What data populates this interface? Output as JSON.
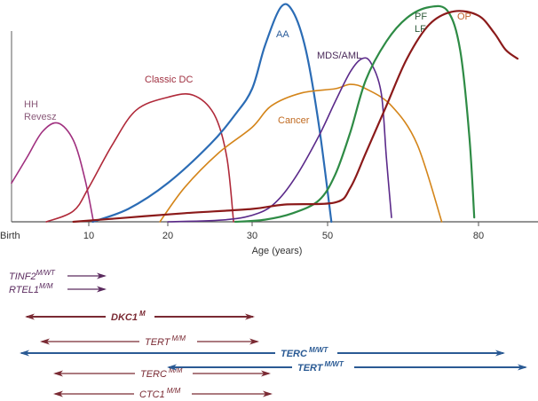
{
  "chart_data": {
    "type": "line",
    "title": "",
    "xlabel": "Age (years)",
    "ylabel": "",
    "x_ticks": [
      {
        "label": "Birth",
        "age": 0
      },
      {
        "label": "10",
        "age": 10
      },
      {
        "label": "20",
        "age": 20
      },
      {
        "label": "30",
        "age": 30
      },
      {
        "label": "50",
        "age": 50
      },
      {
        "label": "80",
        "age": 80
      }
    ],
    "xlim": [
      0,
      100
    ],
    "ylim": [
      0,
      100
    ],
    "grid": false,
    "y_unit": "relative frequency (arbitrary)",
    "series": [
      {
        "name": "HH Revesz",
        "label_lines": [
          "HH",
          "Revesz"
        ],
        "color": "#a0307f",
        "points": [
          [
            0,
            18
          ],
          [
            2,
            30
          ],
          [
            4,
            42
          ],
          [
            6,
            46
          ],
          [
            8,
            38
          ],
          [
            9.5,
            20
          ],
          [
            10.6,
            0
          ]
        ]
      },
      {
        "name": "Classic DC",
        "label_lines": [
          "Classic DC"
        ],
        "color": "#b02a3a",
        "points": [
          [
            4.5,
            0
          ],
          [
            8,
            5
          ],
          [
            10,
            16
          ],
          [
            13,
            36
          ],
          [
            16,
            52
          ],
          [
            20,
            58
          ],
          [
            23,
            59
          ],
          [
            25.5,
            50
          ],
          [
            27,
            30
          ],
          [
            27.8,
            0
          ]
        ]
      },
      {
        "name": "AA",
        "label_lines": [
          "AA"
        ],
        "color": "#2b6cb5",
        "points": [
          [
            10.5,
            0
          ],
          [
            15,
            6
          ],
          [
            20,
            18
          ],
          [
            25,
            36
          ],
          [
            28,
            50
          ],
          [
            30,
            62
          ],
          [
            34,
            82
          ],
          [
            39,
            100
          ],
          [
            42,
            98
          ],
          [
            45,
            80
          ],
          [
            48,
            45
          ],
          [
            51,
            0
          ]
        ]
      },
      {
        "name": "Cancer",
        "label_lines": [
          "Cancer"
        ],
        "color": "#d4851a",
        "points": [
          [
            19,
            0
          ],
          [
            22,
            16
          ],
          [
            26,
            32
          ],
          [
            30,
            44
          ],
          [
            36,
            54
          ],
          [
            44,
            60
          ],
          [
            52,
            62
          ],
          [
            56,
            64
          ],
          [
            60,
            62
          ],
          [
            65,
            54
          ],
          [
            70,
            36
          ],
          [
            74,
            0
          ]
        ]
      },
      {
        "name": "MDS/AML",
        "label_lines": [
          "MDS/AML"
        ],
        "color": "#5b2a8a",
        "points": [
          [
            20,
            0
          ],
          [
            27,
            1
          ],
          [
            32,
            4
          ],
          [
            38,
            10
          ],
          [
            43,
            22
          ],
          [
            48,
            40
          ],
          [
            52,
            56
          ],
          [
            56,
            70
          ],
          [
            59,
            76
          ],
          [
            61,
            74
          ],
          [
            63,
            60
          ],
          [
            64,
            30
          ],
          [
            65,
            2
          ]
        ]
      },
      {
        "name": "PF LF",
        "label_lines": [
          "PF",
          "LF"
        ],
        "color": "#2e8b45",
        "points": [
          [
            28,
            0
          ],
          [
            34,
            1
          ],
          [
            42,
            4
          ],
          [
            48,
            10
          ],
          [
            52,
            22
          ],
          [
            56,
            42
          ],
          [
            60,
            66
          ],
          [
            64,
            84
          ],
          [
            68,
            95
          ],
          [
            72,
            100
          ],
          [
            75,
            98
          ],
          [
            77,
            80
          ],
          [
            78.5,
            40
          ],
          [
            79.3,
            2
          ]
        ]
      },
      {
        "name": "OP",
        "label_lines": [
          "OP"
        ],
        "color": "#8b1a1a",
        "points": [
          [
            8,
            0
          ],
          [
            15,
            2
          ],
          [
            22,
            4
          ],
          [
            30,
            6
          ],
          [
            40,
            8
          ],
          [
            52,
            9
          ],
          [
            56,
            16
          ],
          [
            60,
            32
          ],
          [
            64,
            54
          ],
          [
            68,
            76
          ],
          [
            72,
            92
          ],
          [
            76,
            98
          ],
          [
            80,
            96
          ],
          [
            84,
            88
          ],
          [
            87,
            80
          ],
          [
            90,
            76
          ]
        ]
      }
    ],
    "gene_arrows": [
      {
        "gene": "TINF2",
        "genotype": "M/WT",
        "color": "#5a2a5e",
        "bold": false,
        "start_age": 4.5,
        "end_age": 12,
        "left_arrow": false,
        "right_arrow": true,
        "label_side": "left"
      },
      {
        "gene": "RTEL1",
        "genotype": "M/M",
        "color": "#5a2a5e",
        "bold": false,
        "start_age": 4.5,
        "end_age": 12,
        "left_arrow": false,
        "right_arrow": true,
        "label_side": "left"
      },
      {
        "gene": "DKC1",
        "genotype": "M",
        "color": "#7a2a33",
        "bold": true,
        "start_age": 1.5,
        "end_age": 30,
        "left_arrow": true,
        "right_arrow": true,
        "label_side": "middle"
      },
      {
        "gene": "TERT",
        "genotype": "M/M",
        "color": "#7a2a33",
        "bold": false,
        "start_age": 3.5,
        "end_age": 30.5,
        "left_arrow": true,
        "right_arrow": true,
        "label_side": "middle"
      },
      {
        "gene": "TERC",
        "genotype": "M/WT",
        "color": "#2a5a94",
        "bold": true,
        "start_age": 19,
        "end_age": 92,
        "left_arrow": true,
        "right_arrow": true,
        "label_side": "middle"
      },
      {
        "gene": "TERC",
        "genotype": "M/M",
        "color": "#7a2a33",
        "bold": false,
        "start_age": 5,
        "end_age": 31,
        "left_arrow": true,
        "right_arrow": true,
        "label_side": "middle"
      },
      {
        "gene": "TERT",
        "genotype": "M/WT",
        "color": "#2a5a94",
        "bold": true,
        "start_age": 20,
        "end_age": 100,
        "left_arrow": true,
        "right_arrow": true,
        "label_side": "middle"
      },
      {
        "gene": "CTC1",
        "genotype": "M/M",
        "color": "#7a2a33",
        "bold": false,
        "start_age": 5,
        "end_age": 31,
        "left_arrow": true,
        "right_arrow": true,
        "label_side": "middle"
      }
    ]
  }
}
